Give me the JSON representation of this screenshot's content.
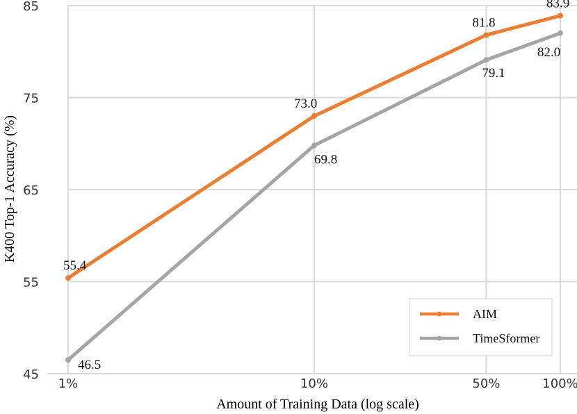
{
  "chart_data": {
    "type": "line",
    "xlabel": "Amount of Training Data (log scale)",
    "ylabel": "K400 Top-1 Accuracy (%)",
    "x_scale": "log",
    "x": [
      1,
      10,
      50,
      100
    ],
    "x_tick_labels": [
      "1%",
      "10%",
      "50%",
      "100%"
    ],
    "ylim": [
      45,
      85
    ],
    "y_ticks": [
      45,
      55,
      65,
      75,
      85
    ],
    "grid": true,
    "legend_position": "bottom-right",
    "series": [
      {
        "name": "AIM",
        "color": "#ED7D31",
        "values": [
          55.4,
          73.0,
          81.8,
          83.9
        ],
        "labels": [
          "55.4",
          "73.0",
          "81.8",
          "83.9"
        ]
      },
      {
        "name": "TimeSformer",
        "color": "#A5A5A5",
        "values": [
          46.5,
          69.8,
          79.1,
          82.0
        ],
        "labels": [
          "46.5",
          "69.8",
          "79.1",
          "82.0"
        ]
      }
    ]
  }
}
